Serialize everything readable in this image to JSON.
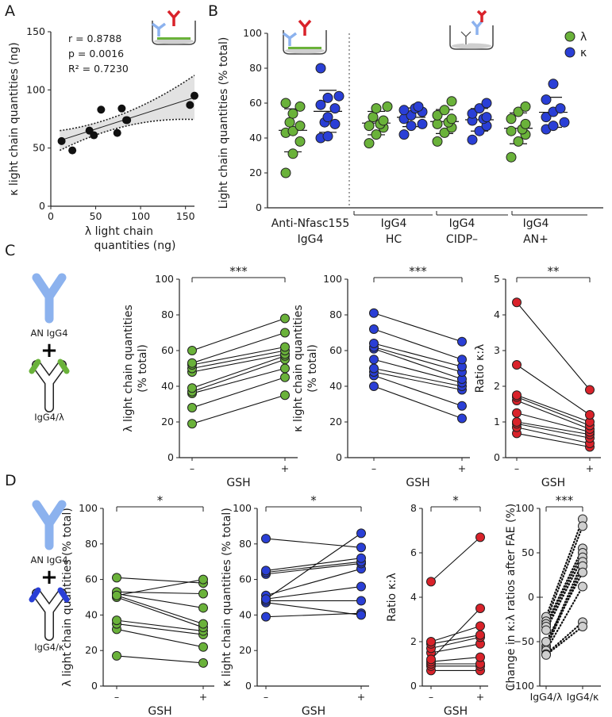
{
  "colors": {
    "green": "#6ab23a",
    "blue": "#2a3fd6",
    "red": "#d9222a",
    "light_blue": "#8cb2ee",
    "dark_blue": "#2a3fd6",
    "gray": "#cfcfcf"
  },
  "panel_labels": {
    "A": "A",
    "B": "B",
    "C": "C",
    "D": "D"
  },
  "gsh": {
    "label": "GSH",
    "minus": "–",
    "plus": "+"
  },
  "cartoons": {
    "an_igg4": "AN IgG4",
    "plus_sign": "+",
    "igg4_lambda": "IgG4/λ",
    "igg4_kappa": "IgG4/κ"
  },
  "chart_data": [
    {
      "id": "A",
      "type": "scatter",
      "xlabel": [
        "λ light chain",
        "quantities (ng)"
      ],
      "ylabel": "κ light chain quantities (ng)",
      "xlim": [
        0,
        160
      ],
      "ylim": [
        0,
        150
      ],
      "xticks": [
        "0",
        "50",
        "100",
        "150"
      ],
      "yticks": [
        "0",
        "50",
        "100",
        "150"
      ],
      "stats": [
        "r = 0.8788",
        "p = 0.0016",
        "R² = 0.7230"
      ],
      "x": [
        12,
        24,
        43,
        48,
        56,
        74,
        79,
        84,
        85,
        155,
        160
      ],
      "y": [
        56,
        48,
        65,
        61,
        83,
        63,
        84,
        74,
        74,
        87,
        95
      ],
      "fit": {
        "slope": 0.247,
        "intercept": 54.0
      }
    },
    {
      "id": "B",
      "type": "scatter",
      "ylabel": "Light chain quantities (% total)",
      "ylim": [
        0,
        100
      ],
      "yticks": [
        "0",
        "20",
        "40",
        "60",
        "80",
        "100"
      ],
      "legend": [
        "λ",
        "κ"
      ],
      "groups": [
        {
          "line1": "Anti-Nfasc155",
          "line2": "IgG4",
          "lambda": [
            20,
            31,
            38,
            43,
            44,
            47,
            49,
            54,
            58,
            60
          ],
          "kappa": [
            40,
            41,
            48,
            49,
            52,
            57,
            59,
            63,
            64,
            80
          ]
        },
        {
          "line1": "IgG4",
          "line2": "HC",
          "lambda": [
            37,
            42,
            46,
            47,
            48,
            50,
            52,
            57,
            58
          ],
          "kappa": [
            42,
            47,
            48,
            51,
            53,
            55,
            56,
            57,
            58
          ]
        },
        {
          "line1": "IgG4",
          "line2": "CIDP–",
          "lambda": [
            38,
            43,
            46,
            48,
            49,
            51,
            53,
            56,
            61
          ],
          "kappa": [
            39,
            44,
            47,
            50,
            51,
            52,
            54,
            57,
            60
          ]
        },
        {
          "line1": "IgG4",
          "line2": "AN+",
          "lambda": [
            29,
            38,
            42,
            44,
            45,
            48,
            51,
            55,
            58
          ],
          "kappa": [
            45,
            47,
            49,
            52,
            55,
            57,
            62,
            71
          ]
        }
      ]
    },
    {
      "id": "C1",
      "type": "paired",
      "color": "green",
      "ylabel": [
        "λ light chain quantities",
        "(% total)"
      ],
      "ylim": [
        0,
        100
      ],
      "yticks": [
        "0",
        "20",
        "40",
        "60",
        "80",
        "100"
      ],
      "significance": "***",
      "pairs": [
        [
          19,
          35
        ],
        [
          28,
          45
        ],
        [
          36,
          50
        ],
        [
          37,
          55
        ],
        [
          39,
          57
        ],
        [
          48,
          58
        ],
        [
          50,
          60
        ],
        [
          52,
          62
        ],
        [
          53,
          70
        ],
        [
          60,
          78
        ]
      ]
    },
    {
      "id": "C2",
      "type": "paired",
      "color": "blue",
      "ylabel": [
        "κ light chain quantities",
        "(% total)"
      ],
      "ylim": [
        0,
        100
      ],
      "yticks": [
        "0",
        "20",
        "40",
        "60",
        "80",
        "100"
      ],
      "significance": "***",
      "pairs": [
        [
          40,
          22
        ],
        [
          46,
          29
        ],
        [
          48,
          38
        ],
        [
          50,
          40
        ],
        [
          55,
          42
        ],
        [
          61,
          44
        ],
        [
          62,
          48
        ],
        [
          64,
          51
        ],
        [
          72,
          55
        ],
        [
          81,
          65
        ]
      ]
    },
    {
      "id": "C3",
      "type": "paired",
      "color": "red",
      "ylabel": [
        "Ratio κ:λ"
      ],
      "ylim": [
        0,
        5
      ],
      "yticks": [
        "0",
        "1",
        "2",
        "3",
        "4",
        "5"
      ],
      "significance": "**",
      "pairs": [
        [
          0.68,
          0.3
        ],
        [
          0.85,
          0.4
        ],
        [
          0.95,
          0.55
        ],
        [
          1.0,
          0.65
        ],
        [
          1.25,
          0.72
        ],
        [
          1.6,
          0.8
        ],
        [
          1.7,
          0.9
        ],
        [
          1.75,
          1.0
        ],
        [
          2.6,
          1.2
        ],
        [
          4.35,
          1.9
        ]
      ]
    },
    {
      "id": "D1",
      "type": "paired",
      "color": "green",
      "ylabel": [
        "λ light chain quantities (% total)"
      ],
      "ylim": [
        0,
        100
      ],
      "yticks": [
        "0",
        "20",
        "40",
        "60",
        "80",
        "100"
      ],
      "significance": "*",
      "pairs": [
        [
          17,
          13
        ],
        [
          32,
          22
        ],
        [
          35,
          29
        ],
        [
          37,
          31
        ],
        [
          50,
          33
        ],
        [
          51,
          35
        ],
        [
          52,
          44
        ],
        [
          53,
          52
        ],
        [
          61,
          58
        ],
        [
          51,
          60
        ]
      ]
    },
    {
      "id": "D2",
      "type": "paired",
      "color": "blue",
      "ylabel": [
        "κ light chain quantities (% total)"
      ],
      "ylim": [
        0,
        100
      ],
      "yticks": [
        "0",
        "20",
        "40",
        "60",
        "80",
        "100"
      ],
      "significance": "*",
      "pairs": [
        [
          39,
          41
        ],
        [
          47,
          40
        ],
        [
          48,
          48
        ],
        [
          49,
          56
        ],
        [
          51,
          66
        ],
        [
          63,
          69
        ],
        [
          64,
          70
        ],
        [
          65,
          72
        ],
        [
          83,
          78
        ],
        [
          49,
          86
        ]
      ]
    },
    {
      "id": "D3",
      "type": "paired",
      "color": "red",
      "ylabel": [
        "Ratio κ:λ"
      ],
      "ylim": [
        0,
        8
      ],
      "yticks": [
        "0",
        "2",
        "4",
        "6",
        "8"
      ],
      "significance": "*",
      "pairs": [
        [
          0.7,
          0.7
        ],
        [
          0.9,
          0.9
        ],
        [
          1.0,
          1.0
        ],
        [
          1.1,
          1.3
        ],
        [
          1.5,
          1.9
        ],
        [
          1.7,
          2.2
        ],
        [
          1.9,
          2.3
        ],
        [
          2.0,
          2.7
        ],
        [
          1.2,
          3.5
        ],
        [
          4.7,
          6.7
        ]
      ]
    },
    {
      "id": "D4",
      "type": "paired",
      "color": "gray",
      "dashed": true,
      "ylabel": [
        "Change in κ:λ ratios after FAE (%)"
      ],
      "ylim": [
        -100,
        100
      ],
      "yticks": [
        "−100",
        "−50",
        "0",
        "50",
        "100"
      ],
      "categories": [
        "IgG4/λ",
        "IgG4/κ"
      ],
      "significance": "***",
      "pairs": [
        [
          -22,
          88
        ],
        [
          -27,
          80
        ],
        [
          -30,
          55
        ],
        [
          -33,
          50
        ],
        [
          -37,
          45
        ],
        [
          -55,
          40
        ],
        [
          -58,
          35
        ],
        [
          -60,
          12
        ],
        [
          -64,
          -28
        ],
        [
          -65,
          -33
        ],
        [
          -50,
          28
        ]
      ]
    }
  ]
}
